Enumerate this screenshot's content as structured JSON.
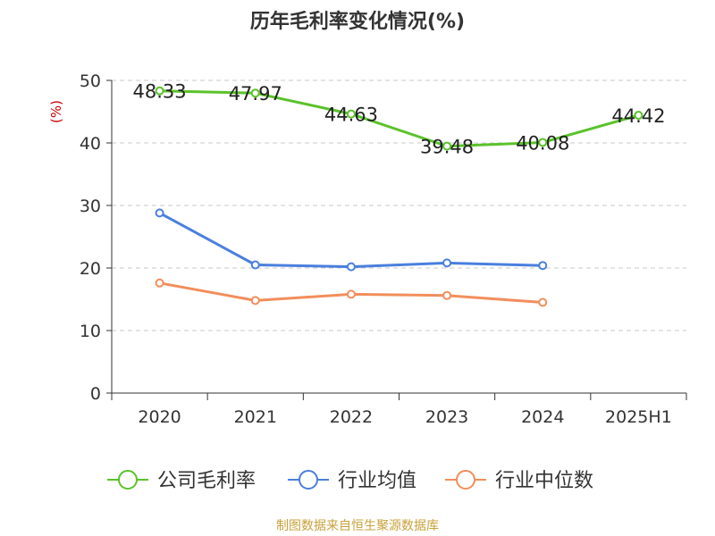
{
  "chart_data": {
    "type": "line",
    "title": "历年毛利率变化情况(%)",
    "ylabel": "(%)",
    "xlabel": "",
    "categories": [
      "2020",
      "2021",
      "2022",
      "2023",
      "2024",
      "2025H1"
    ],
    "ylim": [
      0,
      50
    ],
    "yticks": [
      0,
      10,
      20,
      30,
      40,
      50
    ],
    "grid": true,
    "legend_position": "bottom",
    "series": [
      {
        "name": "公司毛利率",
        "color": "#5bc22b",
        "values": [
          48.33,
          47.97,
          44.63,
          39.48,
          40.08,
          44.42
        ],
        "labels": [
          "48.33",
          "47.97",
          "44.63",
          "39.48",
          "40.08",
          "44.42"
        ]
      },
      {
        "name": "行业均值",
        "color": "#4a7fde",
        "values": [
          28.8,
          20.5,
          20.2,
          20.8,
          20.4,
          null
        ]
      },
      {
        "name": "行业中位数",
        "color": "#f28e5b",
        "values": [
          17.6,
          14.8,
          15.8,
          15.6,
          14.5,
          null
        ]
      }
    ]
  },
  "footer": {
    "source": "制图数据来自恒生聚源数据库"
  }
}
